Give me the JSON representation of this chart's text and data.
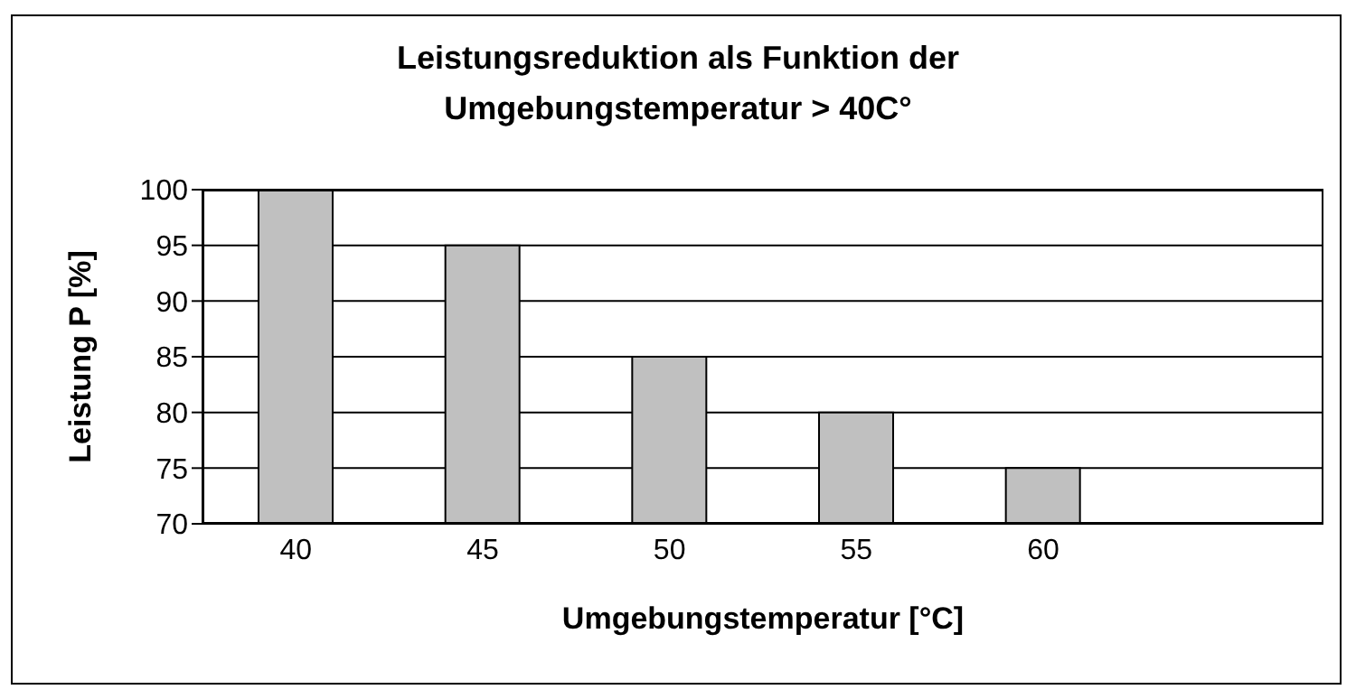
{
  "chart_data": {
    "type": "bar",
    "title": "Leistungsreduktion als Funktion der\nUmgebungstemperatur > 40C°",
    "xlabel": "Umgebungstemperatur [°C]",
    "ylabel": "Leistung P [%]",
    "categories": [
      "40",
      "45",
      "50",
      "55",
      "60",
      null
    ],
    "values": [
      100,
      95,
      85,
      80,
      75,
      null
    ],
    "color": "#c0c0c0",
    "ylim": [
      70,
      100
    ],
    "yticks": [
      70,
      75,
      80,
      85,
      90,
      95,
      100
    ],
    "grid": "y",
    "legend": false
  }
}
